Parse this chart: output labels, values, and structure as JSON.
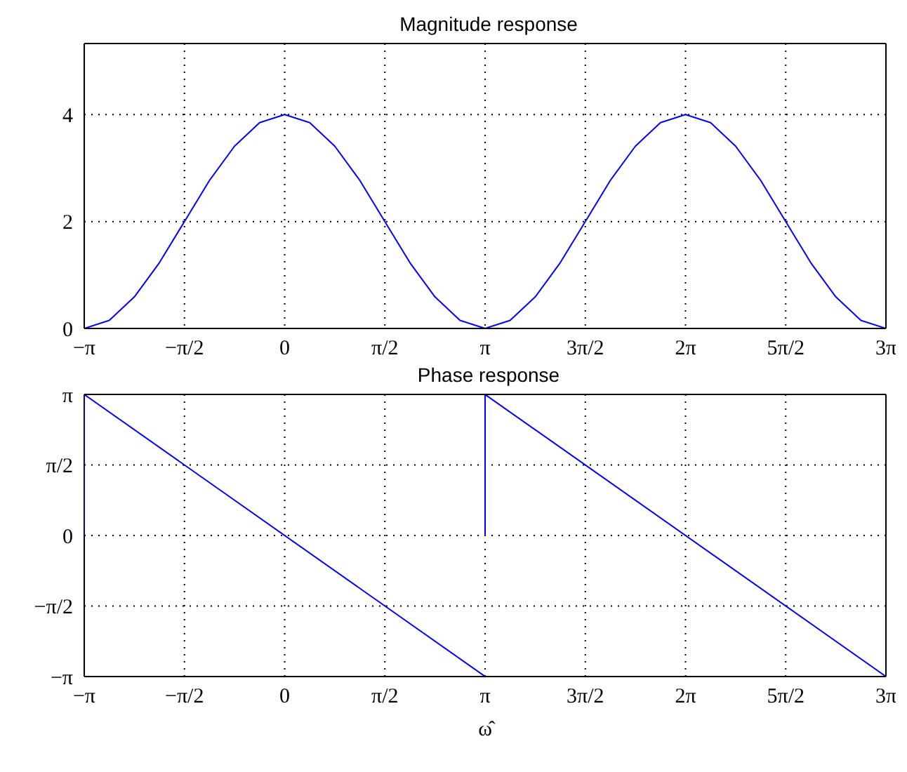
{
  "chart_data": [
    {
      "type": "line",
      "title": "Magnitude response",
      "x": [
        -3.1416,
        -2.7489,
        -2.3562,
        -1.9635,
        -1.5708,
        -1.1781,
        -0.7854,
        -0.3927,
        0,
        0.3927,
        0.7854,
        1.1781,
        1.5708,
        1.9635,
        2.3562,
        2.7489,
        3.1416,
        3.5343,
        3.927,
        4.3197,
        4.7124,
        5.1051,
        5.4978,
        5.8905,
        6.2832,
        6.6759,
        7.0686,
        7.4613,
        7.854,
        8.2467,
        8.6394,
        9.0321,
        9.4248
      ],
      "values": [
        0,
        0.15,
        0.59,
        1.23,
        2,
        2.77,
        3.41,
        3.85,
        4,
        3.85,
        3.41,
        2.77,
        2,
        1.23,
        0.59,
        0.15,
        0,
        0.15,
        0.59,
        1.23,
        2,
        2.77,
        3.41,
        3.85,
        4,
        3.85,
        3.41,
        2.77,
        2,
        1.23,
        0.59,
        0.15,
        0
      ],
      "color": "#0000ff",
      "xlim": [
        -3.1416,
        9.4248
      ],
      "xticks": [
        {
          "value": -3.1416,
          "label": "−π"
        },
        {
          "value": -1.5708,
          "label": "−π/2"
        },
        0,
        {
          "value": 1.5708,
          "label": "π/2"
        },
        {
          "value": 3.1416,
          "label": "π"
        },
        {
          "value": 4.7124,
          "label": "3π/2"
        },
        {
          "value": 6.2832,
          "label": "2π"
        },
        {
          "value": 7.854,
          "label": "5π/2"
        },
        {
          "value": 9.4248,
          "label": "3π"
        }
      ],
      "ylim": [
        0,
        5.33
      ],
      "yticks": [
        0,
        2,
        4
      ],
      "grid": true
    },
    {
      "type": "line",
      "title": "Phase response",
      "xlabel": "ω̂",
      "series": [
        {
          "color": "#0000ff",
          "x": [
            -3.1416,
            -3.1416,
            3.1416
          ],
          "values": [
            0,
            3.14,
            -3.14
          ]
        },
        {
          "color": "#0000ff",
          "x": [
            3.1416,
            3.1416,
            9.4248
          ],
          "values": [
            0,
            3.14,
            -3.14
          ]
        }
      ],
      "xlim": [
        -3.1416,
        9.4248
      ],
      "xticks": [
        {
          "value": -3.1416,
          "label": "−π"
        },
        {
          "value": -1.5708,
          "label": "−π/2"
        },
        0,
        {
          "value": 1.5708,
          "label": "π/2"
        },
        {
          "value": 3.1416,
          "label": "π"
        },
        {
          "value": 4.7124,
          "label": "3π/2"
        },
        {
          "value": 6.2832,
          "label": "2π"
        },
        {
          "value": 7.854,
          "label": "5π/2"
        },
        {
          "value": 9.4248,
          "label": "3π"
        }
      ],
      "ylim": [
        -3.1416,
        3.1416
      ],
      "yticks": [
        {
          "value": -3.1416,
          "label": "−π"
        },
        {
          "value": -1.5708,
          "label": "−π/2"
        },
        0,
        {
          "value": 1.5708,
          "label": "π/2"
        },
        {
          "value": 3.1416,
          "label": "π"
        }
      ],
      "grid": true
    }
  ]
}
